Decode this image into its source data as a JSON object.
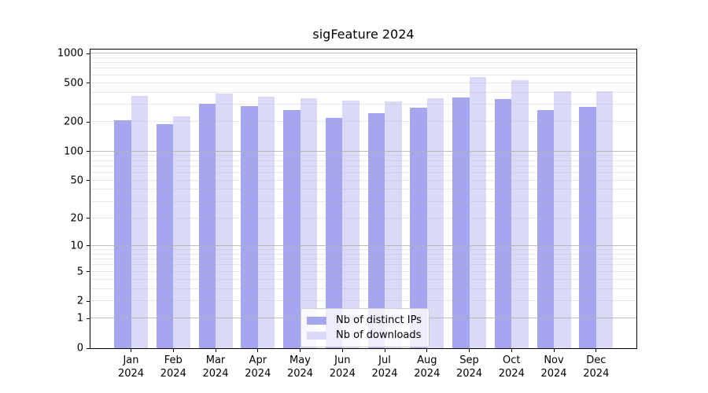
{
  "title": "sigFeature 2024",
  "colors": {
    "distinct_ips": "#a6a6f0",
    "downloads": "#dadaf8",
    "grid": "#b0b0b0",
    "spine": "#000000"
  },
  "legend": {
    "items": [
      {
        "label": "Nb of distinct IPs",
        "series_key": "distinct_ips"
      },
      {
        "label": "Nb of downloads",
        "series_key": "downloads"
      }
    ]
  },
  "chart_data": {
    "type": "bar",
    "title": "sigFeature 2024",
    "categories": [
      "Jan",
      "Feb",
      "Mar",
      "Apr",
      "May",
      "Jun",
      "Jul",
      "Aug",
      "Sep",
      "Oct",
      "Nov",
      "Dec"
    ],
    "category_year": "2024",
    "series": [
      {
        "name": "Nb of distinct IPs",
        "key": "distinct_ips",
        "values": [
          207,
          190,
          310,
          292,
          265,
          220,
          245,
          278,
          356,
          345,
          266,
          285
        ]
      },
      {
        "name": "Nb of downloads",
        "key": "downloads",
        "values": [
          367,
          230,
          390,
          365,
          351,
          330,
          325,
          348,
          575,
          530,
          415,
          415
        ]
      }
    ],
    "xlabel": "",
    "ylabel": "",
    "yscale": "log10(value+1)",
    "ylim": [
      0,
      1001
    ],
    "y_ticks": [
      0,
      1,
      2,
      5,
      10,
      20,
      50,
      100,
      200,
      500,
      1000
    ],
    "grid": "both, horizontal only, drawn above bars",
    "legend_position": "lower center"
  }
}
